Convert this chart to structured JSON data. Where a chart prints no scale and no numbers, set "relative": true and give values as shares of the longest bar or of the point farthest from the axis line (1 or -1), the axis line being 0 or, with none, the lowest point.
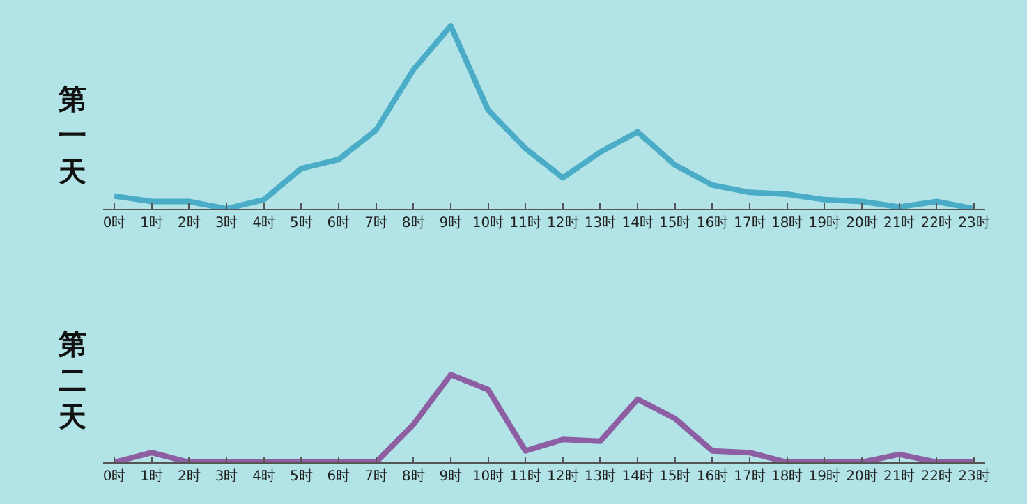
{
  "chart_data": [
    {
      "type": "line",
      "ylabel": "第一天",
      "relative": true,
      "grid": false,
      "marker": "none",
      "categories": [
        "0时",
        "1时",
        "2时",
        "3时",
        "4时",
        "5时",
        "6时",
        "7时",
        "8时",
        "9时",
        "10时",
        "11时",
        "12时",
        "13时",
        "14时",
        "15时",
        "16时",
        "17时",
        "18时",
        "19时",
        "20时",
        "21时",
        "22时",
        "23时"
      ],
      "series": [
        {
          "color": "#4aacc6",
          "values": [
            0.07,
            0.04,
            0.04,
            0.0,
            0.05,
            0.22,
            0.27,
            0.43,
            0.76,
            1,
            0.54,
            0.33,
            0.17,
            0.31,
            0.42,
            0.24,
            0.13,
            0.09,
            0.08,
            0.05,
            0.04,
            0.01,
            0.04,
            0.0
          ]
        }
      ]
    },
    {
      "type": "line",
      "ylabel": "第二天",
      "relative": true,
      "grid": false,
      "marker": "none",
      "categories": [
        "0时",
        "1时",
        "2时",
        "3时",
        "4时",
        "5时",
        "6时",
        "7时",
        "8时",
        "9时",
        "10时",
        "11时",
        "12时",
        "13时",
        "14时",
        "15时",
        "16时",
        "17时",
        "18时",
        "19时",
        "20时",
        "21时",
        "22时",
        "23时"
      ],
      "series": [
        {
          "color": "#8e5ea2",
          "values": [
            0.0,
            0.11,
            0.0,
            0.0,
            0.0,
            0.0,
            0.0,
            0.0,
            0.43,
            1,
            0.83,
            0.13,
            0.26,
            0.24,
            0.72,
            0.5,
            0.13,
            0.11,
            0.0,
            0.0,
            0.0,
            0.09,
            0.0,
            0.0
          ]
        }
      ]
    }
  ]
}
